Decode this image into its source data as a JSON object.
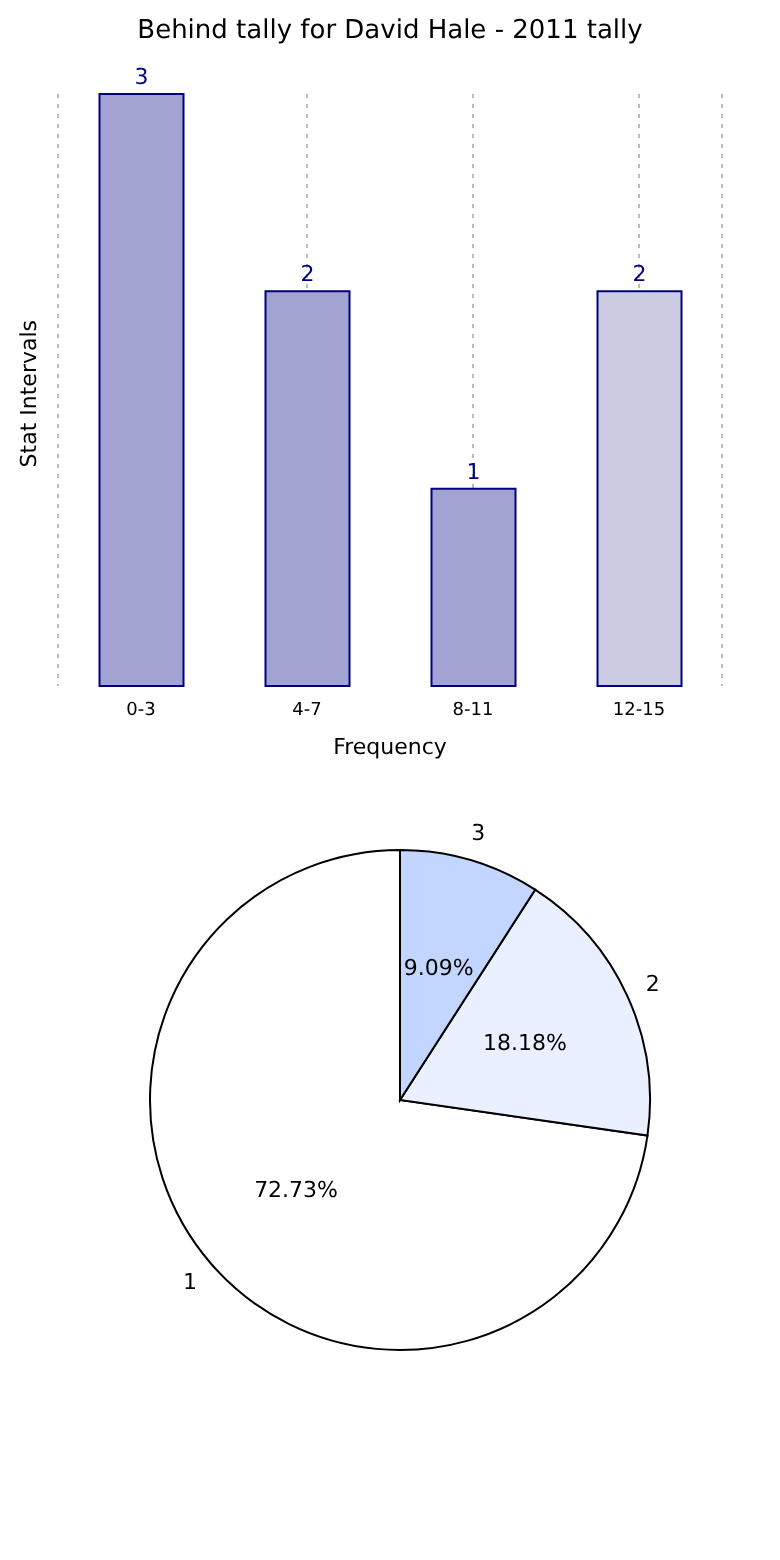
{
  "chart_data": [
    {
      "type": "bar",
      "title": "Behind tally for David Hale - 2011 tally",
      "xlabel": "Frequency",
      "ylabel": "Stat Intervals",
      "categories": [
        "0-3",
        "4-7",
        "8-11",
        "12-15"
      ],
      "values": [
        3,
        2,
        1,
        2
      ],
      "colors": [
        "#a3a3d1",
        "#a3a3d1",
        "#a3a3d1",
        "#cccce3"
      ],
      "data_labels": true,
      "grid": "x",
      "tick_labels": "x"
    },
    {
      "type": "pie",
      "categories": [
        "1",
        "2",
        "3"
      ],
      "values": [
        72.73,
        18.18,
        9.09
      ],
      "colors": [
        "#ffffff",
        "#eaf0ff",
        "#c2d6ff"
      ],
      "value_labels": [
        "72.73%",
        "18.18%",
        "9.09%"
      ]
    }
  ]
}
